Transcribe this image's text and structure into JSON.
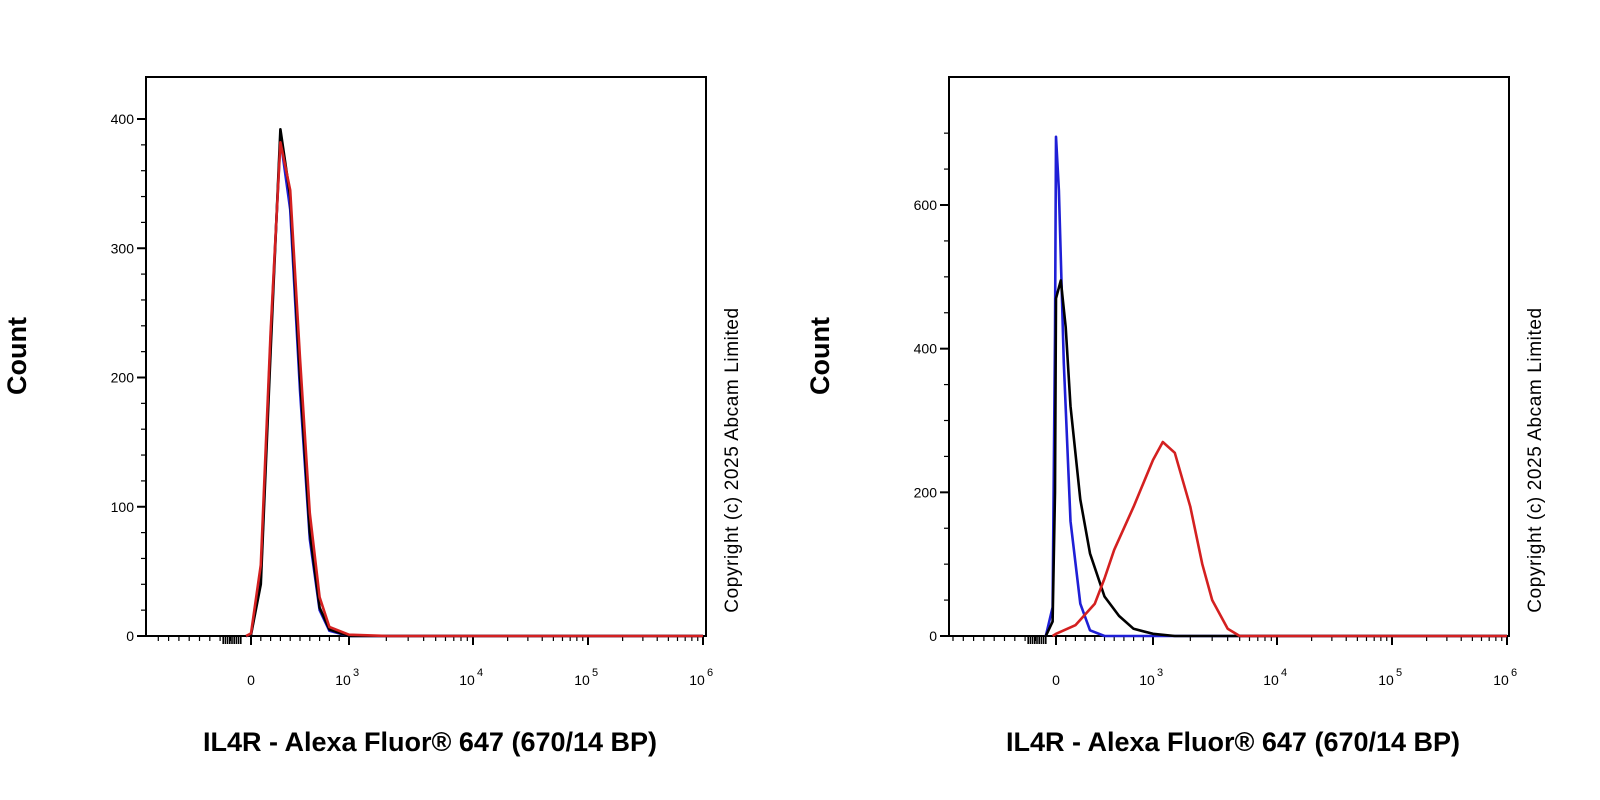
{
  "copyright_text": "Copyright (c) 2025 Abcam Limited",
  "colors": {
    "blue": "#1f1fd6",
    "black": "#000000",
    "red": "#d42020"
  },
  "chart_data": [
    {
      "type": "line",
      "xlabel": "IL4R - Alexa Fluor® 647 (670/14 BP)",
      "ylabel": "Count",
      "x_scale": "biexponential",
      "x_tick_labels": [
        "0",
        "10^3",
        "10^4",
        "10^5",
        "10^6"
      ],
      "y_tick_labels": [
        "0",
        "100",
        "200",
        "300",
        "400"
      ],
      "ylim": [
        0,
        400
      ],
      "y_minor_step": 20,
      "series": [
        {
          "color": "#1f1fd6",
          "x": [
            -50,
            0,
            100,
            200,
            300,
            400,
            500,
            600,
            700,
            800,
            1000,
            2000,
            1000000
          ],
          "y": [
            0,
            1,
            45,
            230,
            385,
            330,
            190,
            75,
            20,
            4,
            0,
            0,
            0
          ]
        },
        {
          "color": "#000000",
          "x": [
            -50,
            0,
            100,
            200,
            300,
            400,
            500,
            600,
            700,
            800,
            1000,
            2000,
            1000000
          ],
          "y": [
            0,
            1,
            40,
            220,
            392,
            340,
            200,
            80,
            22,
            5,
            0,
            0,
            0
          ]
        },
        {
          "color": "#d42020",
          "x": [
            -50,
            0,
            100,
            200,
            300,
            400,
            500,
            600,
            700,
            800,
            1000,
            2000,
            1000000
          ],
          "y": [
            0,
            2,
            55,
            235,
            382,
            345,
            215,
            95,
            30,
            7,
            1,
            0,
            0
          ]
        }
      ]
    },
    {
      "type": "line",
      "xlabel": "IL4R - Alexa Fluor® 647 (670/14 BP)",
      "ylabel": "Count",
      "x_scale": "biexponential",
      "x_tick_labels": [
        "0",
        "10^3",
        "10^4",
        "10^5",
        "10^6"
      ],
      "y_tick_labels": [
        "0",
        "200",
        "400",
        "600"
      ],
      "ylim": [
        0,
        700
      ],
      "y_minor_step": 50,
      "series": [
        {
          "color": "#1f1fd6",
          "x": [
            -300,
            -100,
            -30,
            0,
            30,
            80,
            150,
            250,
            350,
            500,
            1000,
            1000000
          ],
          "y": [
            0,
            40,
            420,
            695,
            620,
            380,
            160,
            45,
            8,
            0,
            0,
            0
          ]
        },
        {
          "color": "#000000",
          "x": [
            -300,
            -100,
            -30,
            0,
            50,
            100,
            150,
            250,
            350,
            500,
            650,
            800,
            1000,
            1500,
            1000000
          ],
          "y": [
            0,
            20,
            200,
            470,
            495,
            430,
            320,
            190,
            115,
            55,
            28,
            10,
            3,
            0,
            0
          ]
        },
        {
          "color": "#d42020",
          "x": [
            -100,
            0,
            200,
            400,
            500,
            600,
            800,
            1000,
            1200,
            1500,
            2000,
            2500,
            3000,
            4000,
            5000,
            1000000
          ],
          "y": [
            0,
            3,
            15,
            45,
            80,
            120,
            180,
            245,
            270,
            255,
            180,
            100,
            50,
            10,
            0,
            0
          ]
        }
      ]
    }
  ]
}
